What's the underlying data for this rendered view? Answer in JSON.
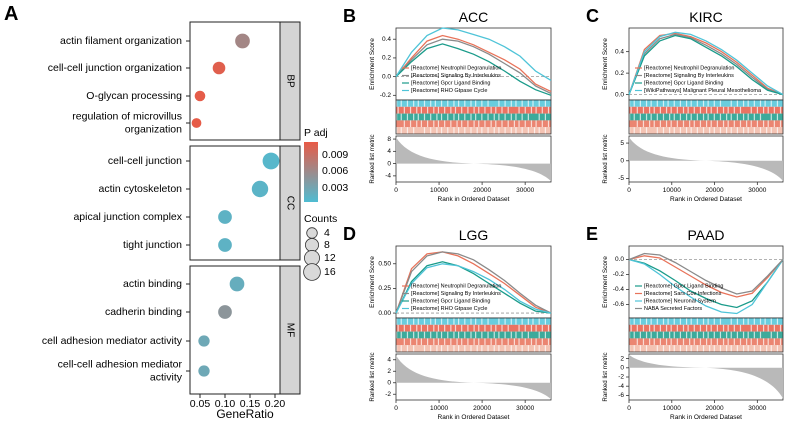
{
  "panel_letters": {
    "a": "A",
    "b": "B",
    "c": "C",
    "d": "D",
    "e": "E"
  },
  "chart_data": [
    {
      "type": "scatter",
      "title": "",
      "xlabel": "GeneRatio",
      "ylabel": "",
      "xlim": [
        0.03,
        0.21
      ],
      "x_ticks": [
        "0.05",
        "0.10",
        "0.15",
        "0.20"
      ],
      "legend": {
        "padj_title": "P adj",
        "padj_ticks": [
          "0.009",
          "0.006",
          "0.003"
        ],
        "count_title": "Counts",
        "count_entries": [
          "4",
          "8",
          "12",
          "16"
        ]
      },
      "facets": [
        {
          "label": "BP",
          "terms": [
            {
              "term": "actin filament organization",
              "generatio": 0.135,
              "count": 11,
              "padj": 0.0055
            },
            {
              "term": "cell-cell junction organization",
              "generatio": 0.088,
              "count": 7,
              "padj": 0.0095
            },
            {
              "term": "O-glycan processing",
              "generatio": 0.05,
              "count": 4,
              "padj": 0.0098
            },
            {
              "term": "regulation of microvillus organization",
              "generatio": 0.043,
              "count": 3,
              "padj": 0.0099
            }
          ]
        },
        {
          "label": "CC",
          "terms": [
            {
              "term": "cell-cell junction",
              "generatio": 0.192,
              "count": 16,
              "padj": 0.0005
            },
            {
              "term": "actin cytoskeleton",
              "generatio": 0.17,
              "count": 15,
              "padj": 0.0008
            },
            {
              "term": "apical junction complex",
              "generatio": 0.1,
              "count": 9,
              "padj": 0.001
            },
            {
              "term": "tight junction",
              "generatio": 0.1,
              "count": 9,
              "padj": 0.001
            }
          ]
        },
        {
          "label": "MF",
          "terms": [
            {
              "term": "actin binding",
              "generatio": 0.124,
              "count": 11,
              "padj": 0.0015
            },
            {
              "term": "cadherin binding",
              "generatio": 0.1,
              "count": 9,
              "padj": 0.004
            },
            {
              "term": "cell adhesion mediator activity",
              "generatio": 0.058,
              "count": 5,
              "padj": 0.002
            },
            {
              "term": "cell-cell adhesion mediator activity",
              "generatio": 0.058,
              "count": 5,
              "padj": 0.002
            }
          ]
        }
      ]
    },
    {
      "type": "line",
      "title": "ACC",
      "ylabel": "Enrichment Score",
      "xlabel": "Rank in Ordered Dataset",
      "es_ticks": [
        "0.4",
        "0.2",
        "0.0",
        "-0.2"
      ],
      "metric_ticks": [
        "8",
        "4",
        "0",
        "-4"
      ],
      "x_ticks": [
        "0",
        "10000",
        "20000",
        "30000"
      ],
      "baseline": "0.0",
      "series": [
        {
          "name": "[Reactome] Neutrophil Degranulation",
          "color": "#e8735a",
          "values": [
            0.0,
            0.2,
            0.38,
            0.44,
            0.4,
            0.34,
            0.26,
            0.18,
            0.08,
            -0.08,
            -0.16
          ]
        },
        {
          "name": "[Reactome] Signaling By Interleukins",
          "color": "#8a8a8a",
          "values": [
            0.0,
            0.18,
            0.34,
            0.4,
            0.38,
            0.32,
            0.24,
            0.14,
            0.04,
            -0.1,
            -0.18
          ]
        },
        {
          "name": "[Reactome] Gpcr Ligand Binding",
          "color": "#1a9b8a",
          "values": [
            0.0,
            0.16,
            0.3,
            0.35,
            0.3,
            0.24,
            0.16,
            0.06,
            -0.05,
            -0.14,
            -0.2
          ]
        },
        {
          "name": "[Reactome] RHO Gtpase Cycle",
          "color": "#4fc4d8",
          "values": [
            0.0,
            0.26,
            0.44,
            0.52,
            0.5,
            0.45,
            0.4,
            0.32,
            0.22,
            0.06,
            -0.04
          ]
        }
      ]
    },
    {
      "type": "line",
      "title": "KIRC",
      "ylabel": "Enrichment Score",
      "xlabel": "Rank in Ordered Dataset",
      "es_ticks": [
        "0.4",
        "0.2",
        "0.0"
      ],
      "metric_ticks": [
        "5",
        "0",
        "-5"
      ],
      "x_ticks": [
        "0",
        "10000",
        "20000",
        "30000"
      ],
      "baseline": "0.0",
      "series": [
        {
          "name": "[Reactome] Neutrophil Degranulation",
          "color": "#e8735a",
          "values": [
            0.0,
            0.42,
            0.55,
            0.57,
            0.54,
            0.48,
            0.4,
            0.3,
            0.18,
            0.06,
            0.0
          ]
        },
        {
          "name": "[Reactome] Signaling By Interleukins",
          "color": "#8a8a8a",
          "values": [
            0.0,
            0.38,
            0.52,
            0.56,
            0.53,
            0.46,
            0.38,
            0.28,
            0.16,
            0.05,
            0.0
          ]
        },
        {
          "name": "[Reactome] Gpcr Ligand Binding",
          "color": "#1a9b8a",
          "values": [
            0.0,
            0.36,
            0.5,
            0.55,
            0.52,
            0.44,
            0.36,
            0.26,
            0.14,
            0.04,
            0.0
          ]
        },
        {
          "name": "[WikiPathways] Malignant Pleural Mesothelioma",
          "color": "#4fc4d8",
          "values": [
            0.0,
            0.4,
            0.54,
            0.58,
            0.56,
            0.5,
            0.42,
            0.32,
            0.2,
            0.08,
            0.0
          ]
        }
      ]
    },
    {
      "type": "line",
      "title": "LGG",
      "ylabel": "Enrichment Score",
      "xlabel": "Rank in Ordered Dataset",
      "es_ticks": [
        "0.50",
        "0.25",
        "0.00"
      ],
      "metric_ticks": [
        "4",
        "2",
        "0",
        "-2"
      ],
      "x_ticks": [
        "0",
        "10000",
        "20000",
        "30000"
      ],
      "baseline": "0.00",
      "series": [
        {
          "name": "[Reactome] Neutrophil Degranulation",
          "color": "#e8735a",
          "values": [
            0.0,
            0.45,
            0.6,
            0.62,
            0.58,
            0.5,
            0.4,
            0.3,
            0.18,
            0.06,
            0.0
          ]
        },
        {
          "name": "[Reactome] Signaling By Interleukins",
          "color": "#8a8a8a",
          "values": [
            0.0,
            0.42,
            0.58,
            0.62,
            0.6,
            0.54,
            0.44,
            0.33,
            0.2,
            0.08,
            0.0
          ]
        },
        {
          "name": "[Reactome] Gpcr Ligand Binding",
          "color": "#1a9b8a",
          "values": [
            0.0,
            0.32,
            0.48,
            0.52,
            0.48,
            0.4,
            0.3,
            0.2,
            0.1,
            0.02,
            0.0
          ]
        },
        {
          "name": "[Reactome] RHO Gtpase Cycle",
          "color": "#4fc4d8",
          "values": [
            0.0,
            0.3,
            0.46,
            0.5,
            0.48,
            0.42,
            0.34,
            0.24,
            0.12,
            0.04,
            0.0
          ]
        }
      ]
    },
    {
      "type": "line",
      "title": "PAAD",
      "ylabel": "Enrichment Score",
      "xlabel": "Rank in Ordered Dataset",
      "es_ticks": [
        "0.0",
        "-0.2",
        "-0.4",
        "-0.6"
      ],
      "metric_ticks": [
        "2",
        "0",
        "-2",
        "-4",
        "-6"
      ],
      "x_ticks": [
        "0",
        "10000",
        "20000",
        "30000"
      ],
      "baseline": "0.0",
      "series": [
        {
          "name": "[Reactome] Gpcr Ligand Binding",
          "color": "#1a9b8a",
          "values": [
            0.0,
            -0.05,
            -0.15,
            -0.28,
            -0.42,
            -0.52,
            -0.6,
            -0.64,
            -0.55,
            -0.3,
            0.0
          ]
        },
        {
          "name": "[Reactome] Sars Cov Infections",
          "color": "#e8735a",
          "values": [
            0.0,
            0.05,
            0.02,
            -0.1,
            -0.22,
            -0.34,
            -0.44,
            -0.5,
            -0.45,
            -0.24,
            0.0
          ]
        },
        {
          "name": "[Reactome] Neuronal System",
          "color": "#4fc4d8",
          "values": [
            0.0,
            -0.06,
            -0.2,
            -0.36,
            -0.5,
            -0.62,
            -0.7,
            -0.72,
            -0.6,
            -0.3,
            0.0
          ]
        },
        {
          "name": "NABA Secreted Factors",
          "color": "#8a8a8a",
          "values": [
            0.0,
            0.08,
            0.06,
            -0.04,
            -0.16,
            -0.28,
            -0.38,
            -0.46,
            -0.42,
            -0.22,
            0.0
          ]
        }
      ]
    }
  ]
}
